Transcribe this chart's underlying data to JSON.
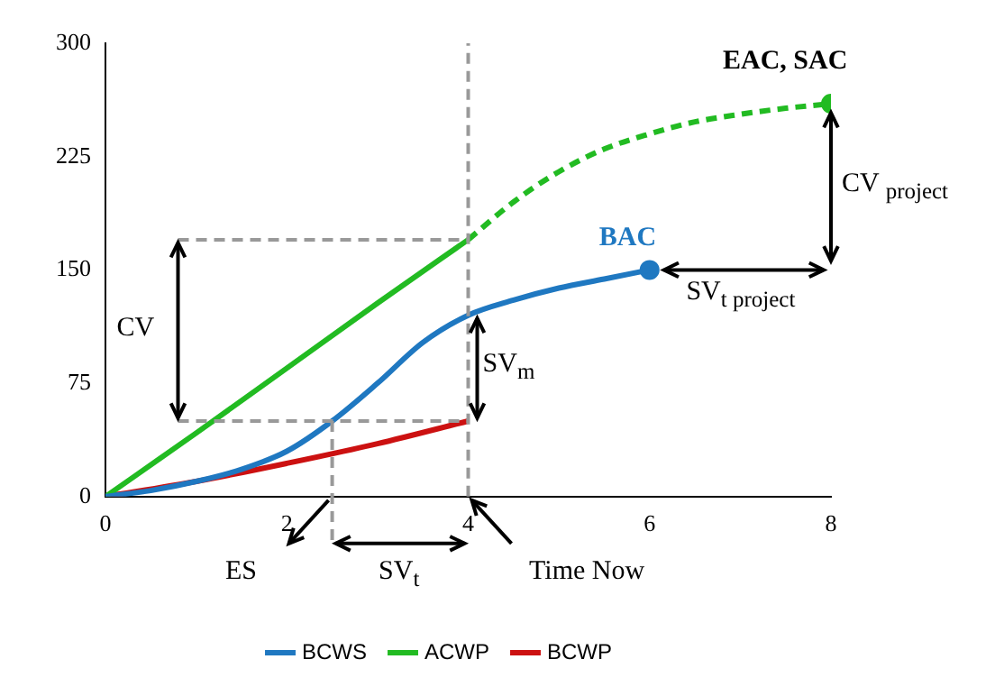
{
  "chart_data": {
    "type": "line",
    "xlim": [
      0,
      8
    ],
    "xticks": [
      0,
      2,
      4,
      6,
      8
    ],
    "ylim": [
      0,
      300
    ],
    "yticks": [
      0,
      75,
      150,
      225,
      300
    ],
    "grid": false,
    "legend": "bottom",
    "marker": "none",
    "series": [
      {
        "name": "BCWS",
        "color": "#1f78c1",
        "x": [
          0,
          0.5,
          1,
          1.5,
          2,
          2.5,
          3,
          3.5,
          4,
          4.5,
          5,
          5.5,
          6
        ],
        "values": [
          0,
          4,
          10,
          18,
          30,
          50,
          75,
          102,
          120,
          130,
          138,
          144,
          150
        ]
      },
      {
        "name": "ACWP",
        "color": "#22bb22",
        "x": [
          0,
          1,
          2,
          3,
          4
        ],
        "values": [
          0,
          42,
          85,
          128,
          170
        ]
      },
      {
        "name": "BCWP",
        "color": "#cc1111",
        "x": [
          0,
          1,
          2,
          3,
          4
        ],
        "values": [
          0,
          10,
          22,
          35,
          50
        ]
      },
      {
        "color": "#22bb22",
        "line_style": "dashed",
        "x": [
          4,
          4.5,
          5,
          5.5,
          6,
          6.5,
          7,
          7.5,
          8
        ],
        "values": [
          170,
          195,
          215,
          230,
          240,
          248,
          253,
          257,
          260
        ]
      },
      {
        "type": "scatter",
        "marker": "circle",
        "x": [
          6,
          8
        ],
        "values": [
          150,
          260
        ],
        "colors": [
          "#1f78c1",
          "#22bb22"
        ]
      }
    ],
    "ref_lines": [
      {
        "axis": "x",
        "value": 4,
        "color": "#999999",
        "line_style": "dashed"
      }
    ],
    "annotations": [
      {
        "text": "EAC, SAC",
        "x": 8,
        "y": 260
      },
      {
        "text": "BAC",
        "x": 6,
        "y": 150
      },
      "CV",
      {
        "text": "SV$_{m}$",
        "x": 4,
        "y": 85
      },
      "CV $_{project}$",
      "SV$_{t project}$",
      "ES",
      "SV$_{t}$",
      "Time Now"
    ]
  }
}
